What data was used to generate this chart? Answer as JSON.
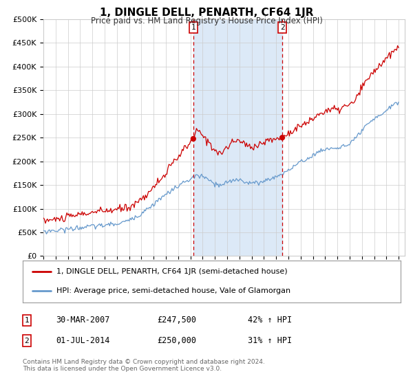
{
  "title": "1, DINGLE DELL, PENARTH, CF64 1JR",
  "subtitle": "Price paid vs. HM Land Registry's House Price Index (HPI)",
  "xlim_start": 1995.0,
  "xlim_end": 2024.5,
  "ylim": [
    0,
    500000
  ],
  "yticks": [
    0,
    50000,
    100000,
    150000,
    200000,
    250000,
    300000,
    350000,
    400000,
    450000,
    500000
  ],
  "ytick_labels": [
    "£0",
    "£50K",
    "£100K",
    "£150K",
    "£200K",
    "£250K",
    "£300K",
    "£350K",
    "£400K",
    "£450K",
    "£500K"
  ],
  "xtick_years": [
    1995,
    1996,
    1997,
    1998,
    1999,
    2000,
    2001,
    2002,
    2003,
    2004,
    2005,
    2006,
    2007,
    2008,
    2009,
    2010,
    2011,
    2012,
    2013,
    2014,
    2015,
    2016,
    2017,
    2018,
    2019,
    2020,
    2021,
    2022,
    2023,
    2024
  ],
  "event1_x": 2007.24,
  "event1_label": "1",
  "event1_price": 247500,
  "event2_x": 2014.5,
  "event2_label": "2",
  "event2_price": 250000,
  "shaded_region_color": "#dce9f7",
  "red_line_color": "#cc0000",
  "blue_line_color": "#6699cc",
  "dashed_line_color": "#cc0000",
  "grid_color": "#cccccc",
  "bg_color": "#ffffff",
  "legend_label_red": "1, DINGLE DELL, PENARTH, CF64 1JR (semi-detached house)",
  "legend_label_blue": "HPI: Average price, semi-detached house, Vale of Glamorgan",
  "table_row1": [
    "1",
    "30-MAR-2007",
    "£247,500",
    "42% ↑ HPI"
  ],
  "table_row2": [
    "2",
    "01-JUL-2014",
    "£250,000",
    "31% ↑ HPI"
  ],
  "footer": "Contains HM Land Registry data © Crown copyright and database right 2024.\nThis data is licensed under the Open Government Licence v3.0."
}
